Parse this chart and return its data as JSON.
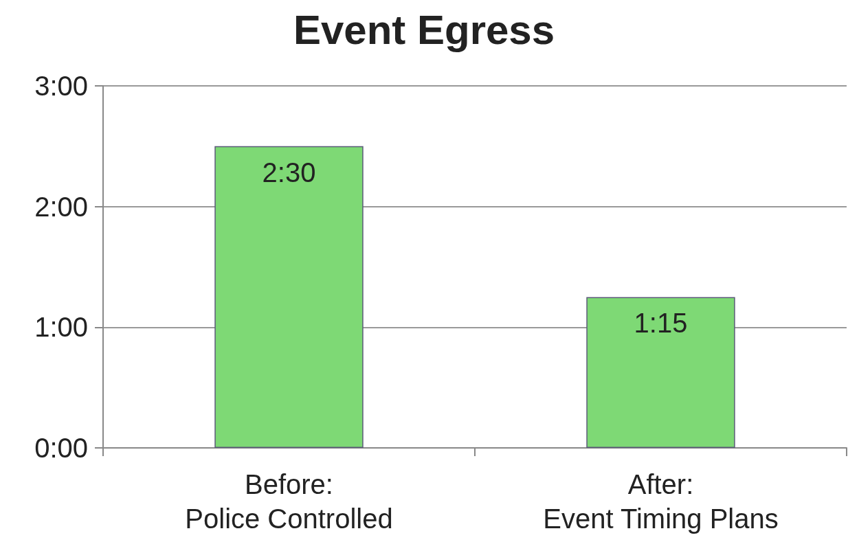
{
  "chart_data": {
    "type": "bar",
    "title": "Event Egress",
    "categories": [
      "Before:\nPolice Controlled",
      "After:\nEvent Timing Plans"
    ],
    "values": [
      2.5,
      1.25
    ],
    "value_labels": [
      "2:30",
      "1:15"
    ],
    "color": "#7ed975",
    "ylim": [
      0,
      3
    ],
    "yticks": [
      {
        "value": 0,
        "label": "0:00"
      },
      {
        "value": 1,
        "label": "1:00"
      },
      {
        "value": 2,
        "label": "2:00"
      },
      {
        "value": 3,
        "label": "3:00"
      }
    ],
    "grid": "y"
  }
}
